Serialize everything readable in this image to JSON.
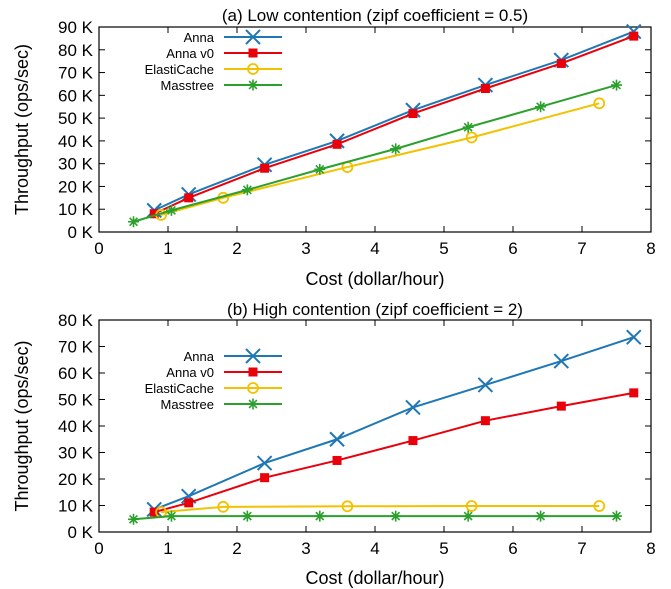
{
  "chart_data": [
    {
      "type": "line",
      "title": "(a) Low contention (zipf coefficient = 0.5)",
      "xlabel": "Cost (dollar/hour)",
      "ylabel": "Throughput (ops/sec)",
      "xlim": [
        0,
        8
      ],
      "ylim": [
        0,
        90000
      ],
      "x_ticks": [
        0,
        1,
        2,
        3,
        4,
        5,
        6,
        7,
        8
      ],
      "y_ticks": [
        0,
        10000,
        20000,
        30000,
        40000,
        50000,
        60000,
        70000,
        80000,
        90000
      ],
      "y_tick_labels": [
        "0 K",
        "10 K",
        "20 K",
        "30 K",
        "40 K",
        "50 K",
        "60 K",
        "70 K",
        "80 K",
        "90 K"
      ],
      "legend_position": "top-left",
      "grid": false,
      "series": [
        {
          "name": "Anna",
          "color": "#1f77b4",
          "marker": "cross",
          "x": [
            0.8,
            1.3,
            2.4,
            3.45,
            4.55,
            5.6,
            6.7,
            7.75
          ],
          "y": [
            9500,
            16500,
            29500,
            40000,
            53500,
            64500,
            75500,
            88000
          ]
        },
        {
          "name": "Anna v0",
          "color": "#e8000b",
          "marker": "square",
          "x": [
            0.8,
            1.3,
            2.4,
            3.45,
            4.55,
            5.6,
            6.7,
            7.75
          ],
          "y": [
            8000,
            15000,
            28000,
            38500,
            52000,
            63000,
            74000,
            86000
          ]
        },
        {
          "name": "ElastiCache",
          "color": "#f2c200",
          "marker": "circle",
          "x": [
            0.9,
            1.8,
            3.6,
            5.4,
            7.25
          ],
          "y": [
            7500,
            15000,
            28500,
            41500,
            56500
          ]
        },
        {
          "name": "Masstree",
          "color": "#2ca02c",
          "marker": "star",
          "x": [
            0.5,
            1.05,
            2.15,
            3.2,
            4.3,
            5.35,
            6.4,
            7.5
          ],
          "y": [
            4500,
            9500,
            18500,
            27500,
            36500,
            46000,
            55000,
            64500
          ]
        }
      ]
    },
    {
      "type": "line",
      "title": "(b) High contention (zipf coefficient = 2)",
      "xlabel": "Cost (dollar/hour)",
      "ylabel": "Throughput (ops/sec)",
      "xlim": [
        0,
        8
      ],
      "ylim": [
        0,
        80000
      ],
      "x_ticks": [
        0,
        1,
        2,
        3,
        4,
        5,
        6,
        7,
        8
      ],
      "y_ticks": [
        0,
        10000,
        20000,
        30000,
        40000,
        50000,
        60000,
        70000,
        80000
      ],
      "y_tick_labels": [
        "0 K",
        "10 K",
        "20 K",
        "30 K",
        "40 K",
        "50 K",
        "60 K",
        "70 K",
        "80 K"
      ],
      "legend_position": "top-left",
      "grid": false,
      "series": [
        {
          "name": "Anna",
          "color": "#1f77b4",
          "marker": "cross",
          "x": [
            0.8,
            1.3,
            2.4,
            3.45,
            4.55,
            5.6,
            6.7,
            7.75
          ],
          "y": [
            8500,
            13500,
            26000,
            35000,
            47000,
            55500,
            64500,
            73500
          ]
        },
        {
          "name": "Anna v0",
          "color": "#e8000b",
          "marker": "square",
          "x": [
            0.8,
            1.3,
            2.4,
            3.45,
            4.55,
            5.6,
            6.7,
            7.75
          ],
          "y": [
            7500,
            11000,
            20500,
            27000,
            34500,
            42000,
            47500,
            52500
          ]
        },
        {
          "name": "ElastiCache",
          "color": "#f2c200",
          "marker": "circle",
          "x": [
            0.9,
            1.8,
            3.6,
            5.4,
            7.25
          ],
          "y": [
            7500,
            9500,
            9700,
            9800,
            9800
          ]
        },
        {
          "name": "Masstree",
          "color": "#2ca02c",
          "marker": "star",
          "x": [
            0.5,
            1.05,
            2.15,
            3.2,
            4.3,
            5.35,
            6.4,
            7.5
          ],
          "y": [
            4800,
            6000,
            6000,
            6000,
            6000,
            6000,
            6000,
            6000
          ]
        }
      ]
    }
  ]
}
